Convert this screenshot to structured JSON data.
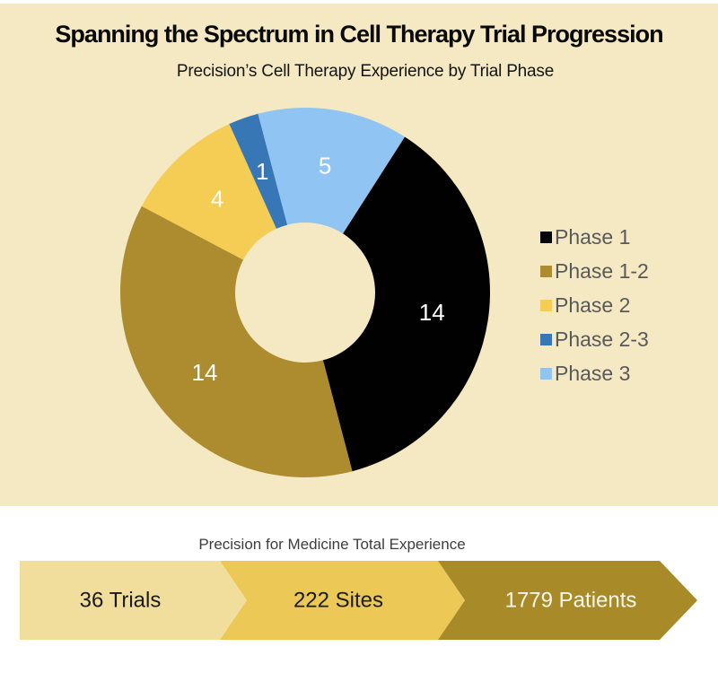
{
  "page": {
    "background": "#FFFFFF",
    "panel_color": "#F5E9C3"
  },
  "chart_data": [
    {
      "type": "pie",
      "subtype": "donut",
      "title": "Spanning the Spectrum in Cell Therapy Trial Progression",
      "subtitle": "Precision’s Cell Therapy Experience by Trial Phase",
      "categories": [
        "Phase 1",
        "Phase 1-2",
        "Phase 2",
        "Phase 2-3",
        "Phase 3"
      ],
      "values": [
        14,
        14,
        4,
        1,
        5
      ],
      "colors": [
        "#010101",
        "#AD8C2F",
        "#F5CD55",
        "#3877B6",
        "#90C5F3"
      ],
      "data_labels": [
        "14",
        "14",
        "4",
        "1",
        "5"
      ],
      "data_label_color": "#FFFFFF",
      "legend_position": "right",
      "legend_text_color": "#595959",
      "start_angle_deg": 32.6,
      "direction": "clockwise",
      "total": 38
    },
    {
      "type": "funnel",
      "title": "Precision for Medicine Total Experience",
      "title_color": "#3D3D3D",
      "categories": [
        "Trials",
        "Sites",
        "Patients"
      ],
      "values": [
        36,
        222,
        1779
      ],
      "labels": [
        "36 Trials",
        "222 Sites",
        "1779 Patients"
      ],
      "colors": [
        "#F1DD9C",
        "#ECC857",
        "#A98A28"
      ],
      "label_colors": [
        "#1A1A1A",
        "#1A1A1A",
        "#FDF9EE"
      ]
    }
  ]
}
